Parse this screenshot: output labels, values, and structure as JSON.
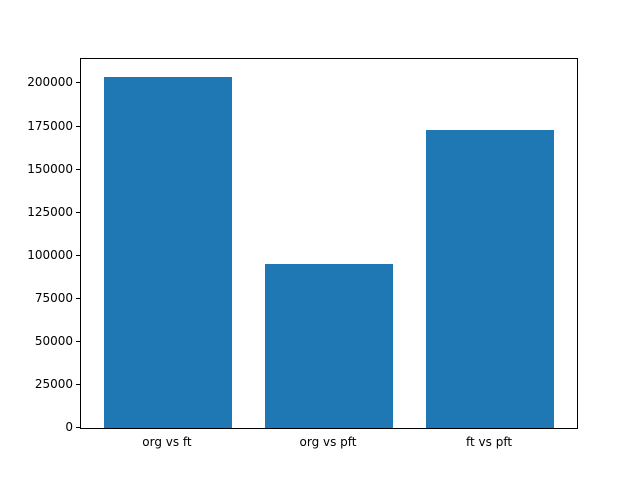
{
  "figure": {
    "background": "#ffffff"
  },
  "chart_data": {
    "type": "bar",
    "categories": [
      "org vs ft",
      "org vs pft",
      "ft vs pft"
    ],
    "values": [
      204000,
      95000,
      173000
    ],
    "title": "",
    "xlabel": "",
    "ylabel": "",
    "ylim": [
      0,
      214200
    ],
    "xlim": [
      -0.54,
      2.54
    ],
    "yticks": [
      0,
      25000,
      50000,
      75000,
      100000,
      125000,
      150000,
      175000,
      200000
    ],
    "bar_width": 0.8,
    "bar_color": "#1f77b4",
    "axes_edge_color": "#000000",
    "grid": false,
    "legend": null
  }
}
